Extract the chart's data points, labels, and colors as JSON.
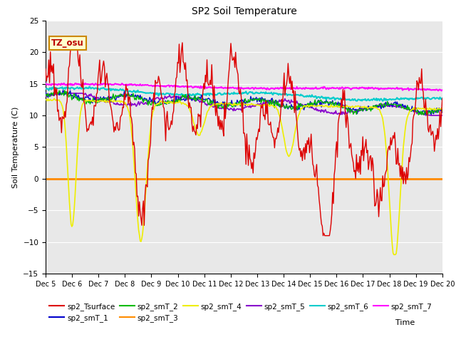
{
  "title": "SP2 Soil Temperature",
  "ylabel": "Soil Temperature (C)",
  "xlabel": "Time",
  "tz_label": "TZ_osu",
  "ylim": [
    -15,
    25
  ],
  "yticks": [
    -15,
    -10,
    -5,
    0,
    5,
    10,
    15,
    20,
    25
  ],
  "background_color": "#e8e8e8",
  "zero_line_color": "#ff8c00",
  "series_colors": {
    "sp2_Tsurface": "#dd0000",
    "sp2_smT_1": "#0000cc",
    "sp2_smT_2": "#00bb00",
    "sp2_smT_3": "#ff8c00",
    "sp2_smT_4": "#eeee00",
    "sp2_smT_5": "#8800cc",
    "sp2_smT_6": "#00cccc",
    "sp2_smT_7": "#ff00ff"
  }
}
